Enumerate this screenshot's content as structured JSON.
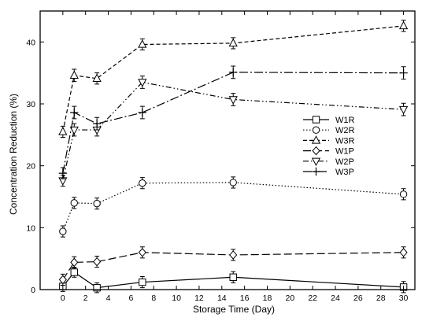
{
  "chart_data": {
    "type": "line",
    "xlabel": "Storage Time (Day)",
    "ylabel": "Concentration Reduction (%)",
    "xlim": [
      -2,
      31
    ],
    "ylim": [
      0,
      45
    ],
    "xticks": [
      0,
      2,
      4,
      6,
      8,
      10,
      12,
      14,
      16,
      18,
      20,
      22,
      24,
      26,
      28,
      30
    ],
    "yticks": [
      0,
      10,
      20,
      30,
      40
    ],
    "legend_position": "center-right",
    "x": [
      0,
      1,
      3,
      7,
      15,
      30
    ],
    "series": [
      {
        "name": "W1R",
        "marker": "square",
        "dash": "solid",
        "values": [
          0.5,
          2.8,
          0.3,
          1.2,
          2.0,
          0.4
        ],
        "error": [
          0.8,
          0.8,
          0.8,
          0.9,
          0.9,
          0.9
        ]
      },
      {
        "name": "W2R",
        "marker": "circle",
        "dash": "dotted",
        "values": [
          9.4,
          14.0,
          13.9,
          17.2,
          17.3,
          15.4
        ],
        "error": [
          0.9,
          0.9,
          0.9,
          0.9,
          0.9,
          0.9
        ]
      },
      {
        "name": "W3R",
        "marker": "triangle-up",
        "dash": "dashed",
        "values": [
          25.5,
          34.6,
          34.1,
          39.6,
          39.8,
          42.6
        ],
        "error": [
          0.9,
          1.0,
          0.9,
          0.9,
          0.9,
          0.9
        ]
      },
      {
        "name": "W1P",
        "marker": "diamond",
        "dash": "long-dash",
        "values": [
          1.6,
          4.4,
          4.5,
          6.0,
          5.6,
          6.0
        ],
        "error": [
          0.9,
          0.9,
          0.9,
          0.9,
          0.9,
          0.9
        ]
      },
      {
        "name": "W2P",
        "marker": "triangle-down",
        "dash": "dash-dot-dot",
        "values": [
          17.6,
          25.8,
          25.8,
          33.5,
          30.7,
          29.1
        ],
        "error": [
          0.9,
          1.0,
          1.0,
          1.0,
          1.0,
          1.0
        ]
      },
      {
        "name": "W3P",
        "marker": "plus",
        "dash": "dash-dot",
        "values": [
          18.8,
          28.6,
          26.8,
          28.6,
          35.1,
          35.0
        ],
        "error": [
          0.9,
          1.0,
          1.0,
          1.0,
          1.0,
          1.0
        ]
      }
    ]
  }
}
